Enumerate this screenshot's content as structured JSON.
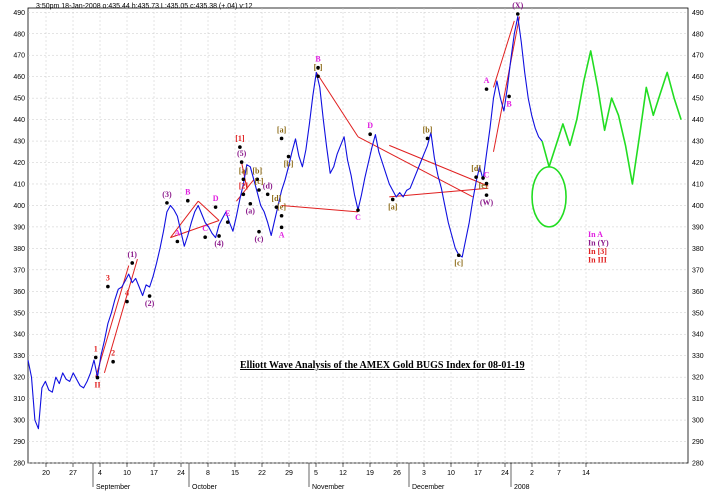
{
  "chart_data": {
    "type": "line",
    "header": "3:50pm 18-Jan-2008 o:435.44 h:435.73 L:435.05 c:435.38 (+.04) v:12",
    "title": "Elliott Wave Analysis of the AMEX Gold BUGS Index for 08-01-19",
    "ylim": [
      280,
      492
    ],
    "y_ticks": [
      280,
      290,
      300,
      310,
      320,
      330,
      340,
      350,
      360,
      370,
      380,
      390,
      400,
      410,
      420,
      430,
      440,
      450,
      460,
      470,
      480,
      490
    ],
    "grid": true,
    "x_day_ticks": [
      "20",
      "27",
      "4",
      "10",
      "17",
      "24",
      "8",
      "15",
      "22",
      "29",
      "5",
      "12",
      "19",
      "26",
      "3",
      "10",
      "17",
      "24",
      "2",
      "7",
      "14"
    ],
    "x_months": [
      "September",
      "October",
      "November",
      "December",
      "2008"
    ],
    "series": [
      {
        "style": "price",
        "color": "#1010e0",
        "points": [
          [
            0,
            328
          ],
          [
            2,
            320
          ],
          [
            4,
            300
          ],
          [
            6,
            296
          ],
          [
            8,
            315
          ],
          [
            10,
            318
          ],
          [
            12,
            314
          ],
          [
            14,
            313
          ],
          [
            16,
            320
          ],
          [
            18,
            317
          ],
          [
            20,
            322
          ],
          [
            22,
            319
          ],
          [
            24,
            318
          ],
          [
            26,
            322
          ],
          [
            28,
            319
          ],
          [
            30,
            316
          ],
          [
            32,
            315
          ],
          [
            34,
            318
          ],
          [
            36,
            322
          ],
          [
            38,
            328
          ],
          [
            40,
            320
          ],
          [
            42,
            330
          ],
          [
            44,
            337
          ],
          [
            46,
            345
          ],
          [
            48,
            350
          ],
          [
            50,
            356
          ],
          [
            52,
            361
          ],
          [
            54,
            362
          ],
          [
            56,
            365
          ],
          [
            58,
            368
          ],
          [
            60,
            364
          ],
          [
            62,
            366
          ],
          [
            64,
            362
          ],
          [
            66,
            358
          ],
          [
            68,
            363
          ],
          [
            70,
            362
          ],
          [
            72,
            367
          ],
          [
            74,
            373
          ],
          [
            76,
            380
          ],
          [
            78,
            388
          ],
          [
            80,
            397
          ],
          [
            82,
            400
          ],
          [
            84,
            398
          ],
          [
            86,
            395
          ],
          [
            88,
            388
          ],
          [
            90,
            381
          ],
          [
            92,
            386
          ],
          [
            94,
            392
          ],
          [
            96,
            397
          ],
          [
            98,
            400
          ],
          [
            100,
            396
          ],
          [
            102,
            392
          ],
          [
            104,
            390
          ],
          [
            106,
            387
          ],
          [
            108,
            385
          ],
          [
            110,
            391
          ],
          [
            112,
            394
          ],
          [
            114,
            397
          ],
          [
            116,
            392
          ],
          [
            118,
            388
          ],
          [
            120,
            395
          ],
          [
            122,
            403
          ],
          [
            124,
            410
          ],
          [
            126,
            419
          ],
          [
            128,
            418
          ],
          [
            130,
            412
          ],
          [
            132,
            406
          ],
          [
            134,
            400
          ],
          [
            136,
            397
          ],
          [
            138,
            392
          ],
          [
            140,
            386
          ],
          [
            142,
            393
          ],
          [
            144,
            400
          ],
          [
            146,
            407
          ],
          [
            148,
            412
          ],
          [
            150,
            418
          ],
          [
            152,
            425
          ],
          [
            154,
            431
          ],
          [
            156,
            423
          ],
          [
            158,
            418
          ],
          [
            160,
            426
          ],
          [
            162,
            438
          ],
          [
            164,
            451
          ],
          [
            166,
            462
          ],
          [
            168,
            455
          ],
          [
            170,
            440
          ],
          [
            172,
            427
          ],
          [
            174,
            415
          ],
          [
            176,
            418
          ],
          [
            178,
            424
          ],
          [
            180,
            428
          ],
          [
            182,
            432
          ],
          [
            184,
            421
          ],
          [
            186,
            414
          ],
          [
            188,
            405
          ],
          [
            190,
            398
          ],
          [
            192,
            405
          ],
          [
            194,
            413
          ],
          [
            196,
            420
          ],
          [
            198,
            427
          ],
          [
            200,
            433
          ],
          [
            202,
            425
          ],
          [
            204,
            420
          ],
          [
            206,
            415
          ],
          [
            208,
            410
          ],
          [
            210,
            407
          ],
          [
            212,
            404
          ],
          [
            214,
            406
          ],
          [
            216,
            404
          ],
          [
            218,
            407
          ],
          [
            220,
            408
          ],
          [
            222,
            412
          ],
          [
            224,
            416
          ],
          [
            226,
            420
          ],
          [
            228,
            424
          ],
          [
            230,
            428
          ],
          [
            232,
            434
          ],
          [
            234,
            422
          ],
          [
            236,
            414
          ],
          [
            238,
            408
          ],
          [
            240,
            400
          ],
          [
            242,
            392
          ],
          [
            244,
            386
          ],
          [
            246,
            380
          ],
          [
            248,
            377
          ],
          [
            250,
            376
          ],
          [
            252,
            384
          ],
          [
            254,
            392
          ],
          [
            256,
            402
          ],
          [
            258,
            411
          ],
          [
            260,
            418
          ],
          [
            262,
            412
          ],
          [
            264,
            424
          ],
          [
            266,
            436
          ],
          [
            268,
            450
          ],
          [
            270,
            458
          ],
          [
            272,
            450
          ],
          [
            274,
            444
          ],
          [
            276,
            455
          ],
          [
            278,
            468
          ],
          [
            280,
            480
          ],
          [
            282,
            488
          ],
          [
            284,
            476
          ],
          [
            286,
            462
          ],
          [
            288,
            450
          ],
          [
            290,
            442
          ],
          [
            292,
            436
          ],
          [
            294,
            432
          ],
          [
            296,
            430
          ]
        ]
      },
      {
        "style": "projection",
        "color": "#22dd22",
        "points": [
          [
            296,
            430
          ],
          [
            300,
            418
          ],
          [
            304,
            428
          ],
          [
            308,
            438
          ],
          [
            312,
            428
          ],
          [
            316,
            440
          ],
          [
            320,
            458
          ],
          [
            324,
            472
          ],
          [
            328,
            455
          ],
          [
            332,
            435
          ],
          [
            336,
            450
          ],
          [
            340,
            442
          ],
          [
            344,
            428
          ],
          [
            348,
            410
          ],
          [
            352,
            432
          ],
          [
            356,
            455
          ],
          [
            360,
            442
          ],
          [
            364,
            452
          ],
          [
            368,
            462
          ],
          [
            372,
            450
          ],
          [
            376,
            440
          ]
        ]
      }
    ],
    "trendlines": [
      {
        "from": [
          39,
          320
        ],
        "to": [
          58,
          372
        ]
      },
      {
        "from": [
          44,
          322
        ],
        "to": [
          63,
          375
        ]
      },
      {
        "from": [
          82,
          385
        ],
        "to": [
          110,
          393
        ]
      },
      {
        "from": [
          82,
          385
        ],
        "to": [
          98,
          402
        ]
      },
      {
        "from": [
          110,
          393
        ],
        "to": [
          98,
          402
        ]
      },
      {
        "from": [
          123,
          420
        ],
        "to": [
          126,
          408
        ]
      },
      {
        "from": [
          120,
          402
        ],
        "to": [
          130,
          412
        ]
      },
      {
        "from": [
          146,
          400
        ],
        "to": [
          190,
          397
        ]
      },
      {
        "from": [
          166,
          462
        ],
        "to": [
          190,
          432
        ]
      },
      {
        "from": [
          190,
          432
        ],
        "to": [
          256,
          404
        ]
      },
      {
        "from": [
          208,
          428
        ],
        "to": [
          265,
          409
        ]
      },
      {
        "from": [
          208,
          404
        ],
        "to": [
          265,
          408
        ]
      },
      {
        "from": [
          268,
          455
        ],
        "to": [
          280,
          486
        ]
      },
      {
        "from": [
          268,
          425
        ],
        "to": [
          283,
          488
        ]
      }
    ],
    "green_circle": {
      "x": 300,
      "y": 404
    },
    "wave_labels": [
      {
        "text": "II",
        "x": 40,
        "y": 317,
        "color": "#e02020",
        "below": true
      },
      {
        "text": "1",
        "x": 39,
        "y": 332,
        "color": "#e02020"
      },
      {
        "text": "2",
        "x": 49,
        "y": 330,
        "color": "#e02020"
      },
      {
        "text": "3",
        "x": 46,
        "y": 365,
        "color": "#e02020"
      },
      {
        "text": "4",
        "x": 57,
        "y": 358,
        "color": "#e02020"
      },
      {
        "text": "(1)",
        "x": 60,
        "y": 376,
        "color": "#8b1a8b"
      },
      {
        "text": "(2)",
        "x": 70,
        "y": 355,
        "color": "#8b1a8b",
        "below": true
      },
      {
        "text": "(3)",
        "x": 80,
        "y": 404,
        "color": "#8b1a8b"
      },
      {
        "text": "A",
        "x": 86,
        "y": 386,
        "color": "#e020e0"
      },
      {
        "text": "B",
        "x": 92,
        "y": 405,
        "color": "#e020e0"
      },
      {
        "text": "C",
        "x": 102,
        "y": 388,
        "color": "#e020e0"
      },
      {
        "text": "D",
        "x": 108,
        "y": 402,
        "color": "#e020e0"
      },
      {
        "text": "(4)",
        "x": 110,
        "y": 383,
        "color": "#8b1a8b",
        "below": true
      },
      {
        "text": "E",
        "x": 115,
        "y": 395,
        "color": "#e020e0"
      },
      {
        "text": "[1]",
        "x": 122,
        "y": 430,
        "color": "#e02020"
      },
      {
        "text": "(5)",
        "x": 123,
        "y": 423,
        "color": "#8b1a8b"
      },
      {
        "text": "[2]",
        "x": 124,
        "y": 408,
        "color": "#e02020"
      },
      {
        "text": "[a]",
        "x": 124,
        "y": 415,
        "color": "#8b6914"
      },
      {
        "text": "(a)",
        "x": 128,
        "y": 398,
        "color": "#8b1a8b",
        "below": true
      },
      {
        "text": "[b]",
        "x": 132,
        "y": 415,
        "color": "#8b6914"
      },
      {
        "text": "[b]",
        "x": 150,
        "y": 420,
        "color": "#8b6914",
        "below": true
      },
      {
        "text": "[c]",
        "x": 133,
        "y": 410,
        "color": "#8b6914"
      },
      {
        "text": "(c)",
        "x": 133,
        "y": 385,
        "color": "#8b1a8b",
        "below": true
      },
      {
        "text": "(d)",
        "x": 138,
        "y": 408,
        "color": "#8b1a8b"
      },
      {
        "text": "[e]",
        "x": 146,
        "y": 398,
        "color": "#8b6914"
      },
      {
        "text": "[d]",
        "x": 143,
        "y": 402,
        "color": "#8b6914"
      },
      {
        "text": "[a]",
        "x": 146,
        "y": 434,
        "color": "#8b6914"
      },
      {
        "text": "A",
        "x": 146,
        "y": 387,
        "color": "#e020e0",
        "below": true
      },
      {
        "text": "[c]",
        "x": 167,
        "y": 463,
        "color": "#8b6914"
      },
      {
        "text": "B",
        "x": 167,
        "y": 467,
        "color": "#e020e0"
      },
      {
        "text": "D",
        "x": 197,
        "y": 436,
        "color": "#e020e0"
      },
      {
        "text": "C",
        "x": 190,
        "y": 395,
        "color": "#e020e0",
        "below": true
      },
      {
        "text": "[a]",
        "x": 210,
        "y": 400,
        "color": "#8b6914",
        "below": true
      },
      {
        "text": "[b]",
        "x": 230,
        "y": 434,
        "color": "#8b6914"
      },
      {
        "text": "[c]",
        "x": 248,
        "y": 374,
        "color": "#8b6914",
        "below": true
      },
      {
        "text": "[d]",
        "x": 258,
        "y": 416,
        "color": "#8b6914"
      },
      {
        "text": "A",
        "x": 264,
        "y": 457,
        "color": "#e020e0"
      },
      {
        "text": "[e]",
        "x": 262,
        "y": 410,
        "color": "#8b6914",
        "below": true
      },
      {
        "text": "(W)",
        "x": 264,
        "y": 402,
        "color": "#8b1a8b",
        "below": true
      },
      {
        "text": "C",
        "x": 264,
        "y": 413,
        "color": "#e020e0"
      },
      {
        "text": "B",
        "x": 277,
        "y": 448,
        "color": "#e020e0",
        "below": true
      },
      {
        "text": "(X)",
        "x": 282,
        "y": 492,
        "color": "#8b1a8b"
      }
    ],
    "projection_labels": [
      {
        "text": "In A",
        "color": "#e020e0"
      },
      {
        "text": "In (Y)",
        "color": "#8b1a8b"
      },
      {
        "text": "In [3]",
        "color": "#e02020"
      },
      {
        "text": "In III",
        "color": "#e02020"
      }
    ]
  }
}
